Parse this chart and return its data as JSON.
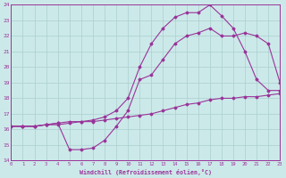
{
  "xlabel": "Windchill (Refroidissement éolien,°C)",
  "background_color": "#cce9e9",
  "grid_color": "#aacfcf",
  "line_color": "#993399",
  "xlim": [
    0,
    23
  ],
  "ylim": [
    14,
    24
  ],
  "xticks": [
    0,
    1,
    2,
    3,
    4,
    5,
    6,
    7,
    8,
    9,
    10,
    11,
    12,
    13,
    14,
    15,
    16,
    17,
    18,
    19,
    20,
    21,
    22,
    23
  ],
  "yticks": [
    14,
    15,
    16,
    17,
    18,
    19,
    20,
    21,
    22,
    23,
    24
  ],
  "line1_x": [
    0,
    1,
    2,
    3,
    4,
    5,
    6,
    7,
    8,
    9,
    10,
    11,
    12,
    13,
    14,
    15,
    16,
    17,
    18,
    19,
    20,
    21,
    22,
    23
  ],
  "line1_y": [
    16.2,
    16.2,
    16.2,
    16.3,
    16.3,
    16.4,
    16.5,
    16.5,
    16.6,
    16.7,
    16.8,
    16.9,
    17.0,
    17.2,
    17.4,
    17.6,
    17.7,
    17.9,
    18.0,
    18.0,
    18.1,
    18.1,
    18.2,
    18.3
  ],
  "line2_x": [
    0,
    1,
    2,
    3,
    4,
    5,
    6,
    7,
    8,
    9,
    10,
    11,
    12,
    13,
    14,
    15,
    16,
    17,
    18,
    19,
    20,
    21,
    22,
    23
  ],
  "line2_y": [
    16.2,
    16.2,
    16.2,
    16.3,
    16.4,
    14.7,
    14.7,
    14.8,
    15.3,
    16.2,
    17.2,
    19.2,
    19.5,
    20.5,
    21.5,
    22.0,
    22.2,
    22.5,
    22.0,
    22.0,
    22.2,
    22.0,
    21.5,
    19.0
  ],
  "line3_x": [
    0,
    1,
    2,
    3,
    4,
    5,
    6,
    7,
    8,
    9,
    10,
    11,
    12,
    13,
    14,
    15,
    16,
    17,
    18,
    19,
    20,
    21,
    22,
    23
  ],
  "line3_y": [
    16.2,
    16.2,
    16.2,
    16.3,
    16.4,
    16.5,
    16.5,
    16.6,
    16.8,
    17.2,
    18.0,
    20.0,
    21.5,
    22.5,
    23.2,
    23.5,
    23.5,
    24.0,
    23.3,
    22.5,
    21.0,
    19.2,
    18.5,
    18.5
  ]
}
